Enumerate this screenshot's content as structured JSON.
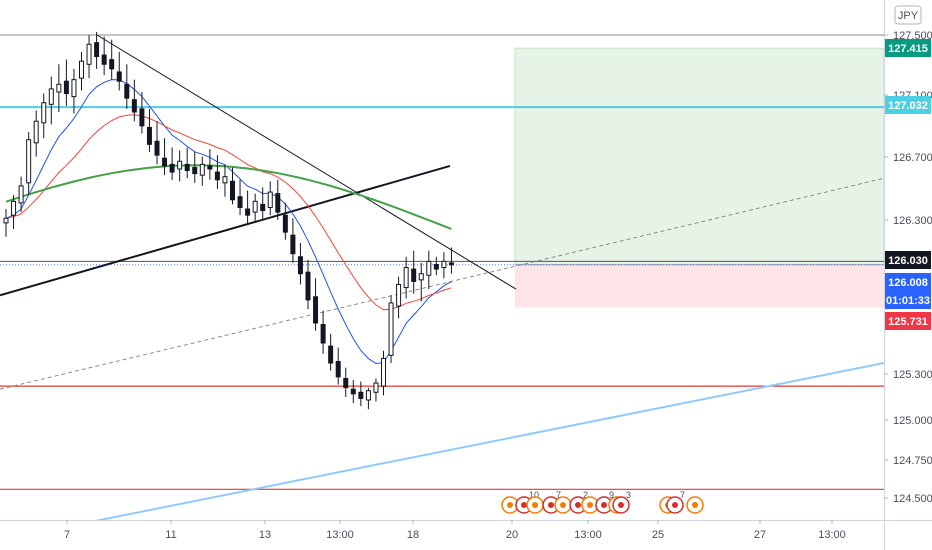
{
  "chart_data": {
    "type": "candlestick",
    "currency_badge": "JPY",
    "y_tick_labels": [
      "127.500",
      "127.100",
      "126.700",
      "126.300",
      "125.300",
      "125.000",
      "124.750",
      "124.500"
    ],
    "x_tick_labels": [
      "7",
      "11",
      "13",
      "13:00",
      "18",
      "20",
      "13:00",
      "25",
      "27",
      "13:00"
    ],
    "price_tags": [
      {
        "label": "127.415",
        "value": 127.415,
        "color": "#089981",
        "text_color": "#ffffff"
      },
      {
        "label": "127.032",
        "value": 127.032,
        "color": "#4dd0e1",
        "text_color": "#ffffff"
      },
      {
        "label": "126.030",
        "value": 126.03,
        "color": "#131722",
        "text_color": "#ffffff"
      },
      {
        "label": "126.008",
        "value": 126.008,
        "color": "#2962ff",
        "text_color": "#ffffff"
      },
      {
        "label": "01:01:33",
        "value": 125.87,
        "color": "#2962ff",
        "text_color": "#ffffff"
      },
      {
        "label": "125.731",
        "value": 125.731,
        "color": "#f23645",
        "text_color": "#ffffff"
      }
    ],
    "horizontal_levels": [
      {
        "value": 127.5,
        "color": "#888888",
        "width": 1
      },
      {
        "value": 127.032,
        "color": "#4dd0e1",
        "width": 2
      },
      {
        "value": 126.03,
        "color": "#555555",
        "width": 1
      },
      {
        "value": 125.22,
        "color": "#e53935",
        "width": 1.2
      },
      {
        "value": 124.55,
        "color": "#e53935",
        "width": 1.2
      }
    ],
    "current_price_line": 126.008,
    "position": {
      "entry": 126.008,
      "target": 127.415,
      "stop": 125.731,
      "profit_fill": "#e6f4e7",
      "loss_fill": "#fde4e6"
    },
    "event_markers": [
      {
        "count": "",
        "color": "#f57c00"
      },
      {
        "count": "10",
        "color": "#d32f2f"
      },
      {
        "count": "",
        "color": "#f57c00"
      },
      {
        "count": "7",
        "color": "#d32f2f"
      },
      {
        "count": "",
        "color": "#f57c00"
      },
      {
        "count": "2",
        "color": "#d32f2f"
      },
      {
        "count": "",
        "color": "#f57c00"
      },
      {
        "count": "9",
        "color": "#d32f2f"
      },
      {
        "count": "",
        "color": "#f57c00"
      },
      {
        "count": "3",
        "color": "#d32f2f"
      },
      {
        "count": "",
        "color": "#f57c00"
      },
      {
        "count": "7",
        "color": "#d32f2f"
      },
      {
        "count": "",
        "color": "#f57c00"
      }
    ],
    "ohlc": [
      [
        126.28,
        126.37,
        126.19,
        126.31
      ],
      [
        126.33,
        126.46,
        126.24,
        126.42
      ],
      [
        126.41,
        126.58,
        126.35,
        126.52
      ],
      [
        126.54,
        126.87,
        126.46,
        126.82
      ],
      [
        126.8,
        127.01,
        126.71,
        126.94
      ],
      [
        126.93,
        127.12,
        126.83,
        127.06
      ],
      [
        127.05,
        127.23,
        126.92,
        127.15
      ],
      [
        127.13,
        127.31,
        127.0,
        127.18
      ],
      [
        127.2,
        127.34,
        127.04,
        127.12
      ],
      [
        127.1,
        127.28,
        126.99,
        127.21
      ],
      [
        127.22,
        127.39,
        127.14,
        127.33
      ],
      [
        127.31,
        127.5,
        127.22,
        127.44
      ],
      [
        127.45,
        127.52,
        127.28,
        127.36
      ],
      [
        127.37,
        127.49,
        127.24,
        127.31
      ],
      [
        127.34,
        127.47,
        127.21,
        127.28
      ],
      [
        127.26,
        127.39,
        127.14,
        127.2
      ],
      [
        127.18,
        127.31,
        127.02,
        127.09
      ],
      [
        127.08,
        127.21,
        126.94,
        127.0
      ],
      [
        127.02,
        127.13,
        126.86,
        126.91
      ],
      [
        126.9,
        127.02,
        126.74,
        126.79
      ],
      [
        126.81,
        126.94,
        126.66,
        126.72
      ],
      [
        126.7,
        126.83,
        126.59,
        126.65
      ],
      [
        126.66,
        126.77,
        126.56,
        126.61
      ],
      [
        126.63,
        126.75,
        126.55,
        126.68
      ],
      [
        126.66,
        126.77,
        126.57,
        126.62
      ],
      [
        126.64,
        126.74,
        126.54,
        126.6
      ],
      [
        126.59,
        126.71,
        126.52,
        126.66
      ],
      [
        126.65,
        126.76,
        126.56,
        126.63
      ],
      [
        126.61,
        126.72,
        126.5,
        126.56
      ],
      [
        126.54,
        126.66,
        126.45,
        126.58
      ],
      [
        126.55,
        126.64,
        126.4,
        126.43
      ],
      [
        126.45,
        126.56,
        126.33,
        126.38
      ],
      [
        126.37,
        126.49,
        126.27,
        126.33
      ],
      [
        126.35,
        126.47,
        126.28,
        126.42
      ],
      [
        126.4,
        126.51,
        126.3,
        126.36
      ],
      [
        126.38,
        126.55,
        126.33,
        126.48
      ],
      [
        126.47,
        126.56,
        126.3,
        126.35
      ],
      [
        126.33,
        126.41,
        126.17,
        126.22
      ],
      [
        126.2,
        126.31,
        126.02,
        126.08
      ],
      [
        126.06,
        126.15,
        125.88,
        125.95
      ],
      [
        125.96,
        126.04,
        125.72,
        125.78
      ],
      [
        125.8,
        125.92,
        125.58,
        125.63
      ],
      [
        125.62,
        125.71,
        125.43,
        125.5
      ],
      [
        125.48,
        125.56,
        125.32,
        125.37
      ],
      [
        125.38,
        125.47,
        125.23,
        125.28
      ],
      [
        125.27,
        125.34,
        125.15,
        125.21
      ],
      [
        125.2,
        125.26,
        125.11,
        125.17
      ],
      [
        125.18,
        125.25,
        125.09,
        125.14
      ],
      [
        125.13,
        125.21,
        125.07,
        125.19
      ],
      [
        125.18,
        125.27,
        125.12,
        125.24
      ],
      [
        125.22,
        125.45,
        125.16,
        125.4
      ],
      [
        125.42,
        125.81,
        125.37,
        125.76
      ],
      [
        125.74,
        125.93,
        125.66,
        125.88
      ],
      [
        125.86,
        126.06,
        125.79,
        125.99
      ],
      [
        125.98,
        126.1,
        125.82,
        125.9
      ],
      [
        125.91,
        126.02,
        125.77,
        125.95
      ],
      [
        125.94,
        126.1,
        125.85,
        126.03
      ],
      [
        126.01,
        126.06,
        125.94,
        125.98
      ],
      [
        125.99,
        126.09,
        125.92,
        126.03
      ],
      [
        126.02,
        126.12,
        125.95,
        126.008
      ]
    ]
  }
}
